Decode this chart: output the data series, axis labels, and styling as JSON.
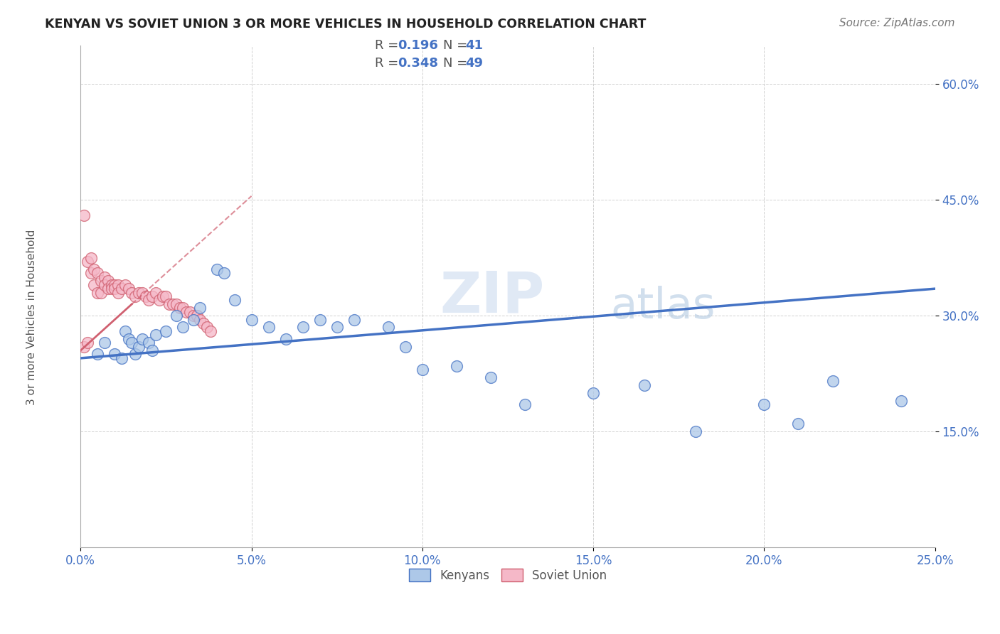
{
  "title": "KENYAN VS SOVIET UNION 3 OR MORE VEHICLES IN HOUSEHOLD CORRELATION CHART",
  "source": "Source: ZipAtlas.com",
  "ylabel_label": "3 or more Vehicles in Household",
  "xlim": [
    0.0,
    0.25
  ],
  "ylim": [
    0.0,
    0.65
  ],
  "xticks": [
    0.0,
    0.05,
    0.1,
    0.15,
    0.2,
    0.25
  ],
  "xtick_labels": [
    "0.0%",
    "5.0%",
    "10.0%",
    "15.0%",
    "20.0%",
    "25.0%"
  ],
  "yticks": [
    0.15,
    0.3,
    0.45,
    0.6
  ],
  "ytick_labels": [
    "15.0%",
    "30.0%",
    "45.0%",
    "60.0%"
  ],
  "legend_r_blue": "0.196",
  "legend_n_blue": "41",
  "legend_r_pink": "0.348",
  "legend_n_pink": "49",
  "blue_color": "#adc8e8",
  "pink_color": "#f5b8c8",
  "blue_line_color": "#4472c4",
  "pink_line_color": "#d06070",
  "watermark": "ZIPatlas",
  "blue_x": [
    0.005,
    0.007,
    0.01,
    0.012,
    0.013,
    0.014,
    0.015,
    0.016,
    0.017,
    0.018,
    0.02,
    0.021,
    0.022,
    0.025,
    0.028,
    0.03,
    0.033,
    0.035,
    0.04,
    0.042,
    0.045,
    0.05,
    0.055,
    0.06,
    0.065,
    0.07,
    0.075,
    0.08,
    0.09,
    0.095,
    0.1,
    0.11,
    0.12,
    0.13,
    0.15,
    0.165,
    0.18,
    0.2,
    0.21,
    0.22,
    0.24
  ],
  "blue_y": [
    0.25,
    0.265,
    0.25,
    0.245,
    0.28,
    0.27,
    0.265,
    0.25,
    0.26,
    0.27,
    0.265,
    0.255,
    0.275,
    0.28,
    0.3,
    0.285,
    0.295,
    0.31,
    0.36,
    0.355,
    0.32,
    0.295,
    0.285,
    0.27,
    0.285,
    0.295,
    0.285,
    0.295,
    0.285,
    0.26,
    0.23,
    0.235,
    0.22,
    0.185,
    0.2,
    0.21,
    0.15,
    0.185,
    0.16,
    0.215,
    0.19
  ],
  "pink_x": [
    0.001,
    0.001,
    0.002,
    0.002,
    0.003,
    0.003,
    0.004,
    0.004,
    0.005,
    0.005,
    0.006,
    0.006,
    0.007,
    0.007,
    0.008,
    0.008,
    0.009,
    0.009,
    0.01,
    0.01,
    0.011,
    0.011,
    0.012,
    0.013,
    0.014,
    0.015,
    0.016,
    0.017,
    0.018,
    0.019,
    0.02,
    0.021,
    0.022,
    0.023,
    0.024,
    0.025,
    0.026,
    0.027,
    0.028,
    0.029,
    0.03,
    0.031,
    0.032,
    0.033,
    0.034,
    0.035,
    0.036,
    0.037,
    0.038
  ],
  "pink_y": [
    0.43,
    0.26,
    0.37,
    0.265,
    0.375,
    0.355,
    0.36,
    0.34,
    0.355,
    0.33,
    0.345,
    0.33,
    0.35,
    0.34,
    0.345,
    0.335,
    0.34,
    0.335,
    0.34,
    0.335,
    0.34,
    0.33,
    0.335,
    0.34,
    0.335,
    0.33,
    0.325,
    0.33,
    0.33,
    0.325,
    0.32,
    0.325,
    0.33,
    0.32,
    0.325,
    0.325,
    0.315,
    0.315,
    0.315,
    0.31,
    0.31,
    0.305,
    0.305,
    0.3,
    0.3,
    0.295,
    0.29,
    0.285,
    0.28
  ],
  "blue_trend_x": [
    0.0,
    0.25
  ],
  "blue_trend_y": [
    0.245,
    0.335
  ],
  "pink_trend_x": [
    0.0,
    0.025
  ],
  "pink_trend_y": [
    0.255,
    0.355
  ]
}
